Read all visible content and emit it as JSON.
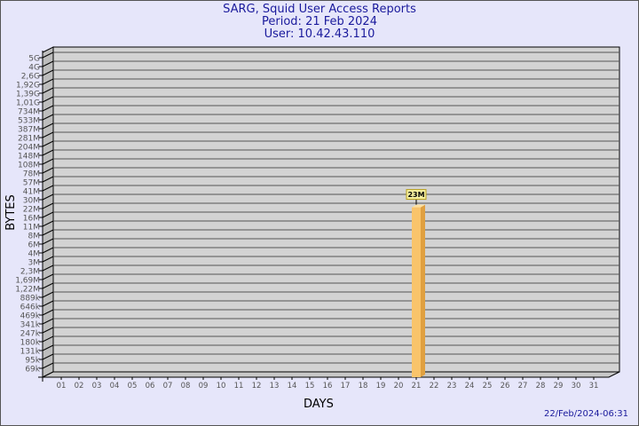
{
  "title": "SARG, Squid User Access Reports",
  "period": "Period: 21 Feb 2024",
  "user": "User: 10.42.43.110",
  "timestamp": "22/Feb/2024-06:31",
  "chart_data": {
    "type": "bar",
    "xlabel": "DAYS",
    "ylabel": "BYTES",
    "yscale": "log",
    "grid": true,
    "categories": [
      "01",
      "02",
      "03",
      "04",
      "05",
      "06",
      "07",
      "08",
      "09",
      "10",
      "11",
      "12",
      "13",
      "14",
      "15",
      "16",
      "17",
      "18",
      "19",
      "20",
      "21",
      "22",
      "23",
      "24",
      "25",
      "26",
      "27",
      "28",
      "29",
      "30",
      "31"
    ],
    "y_ticks": [
      "5G",
      "4G",
      "2,6G",
      "1,92G",
      "1,39G",
      "1,01G",
      "734M",
      "533M",
      "387M",
      "281M",
      "204M",
      "148M",
      "108M",
      "78M",
      "57M",
      "41M",
      "30M",
      "22M",
      "16M",
      "11M",
      "8M",
      "6M",
      "4M",
      "3M",
      "2,3M",
      "1,69M",
      "1,22M",
      "889k",
      "646k",
      "469k",
      "341k",
      "247k",
      "180k",
      "131k",
      "95k",
      "69k"
    ],
    "bars": [
      {
        "category": "21",
        "value": 23000000,
        "label": "23M"
      }
    ],
    "colors": {
      "bar": "#f9c46b",
      "bar_side": "#e0a040",
      "wall": "#d3d3d3",
      "label_bg": "#f5f0a0"
    }
  }
}
